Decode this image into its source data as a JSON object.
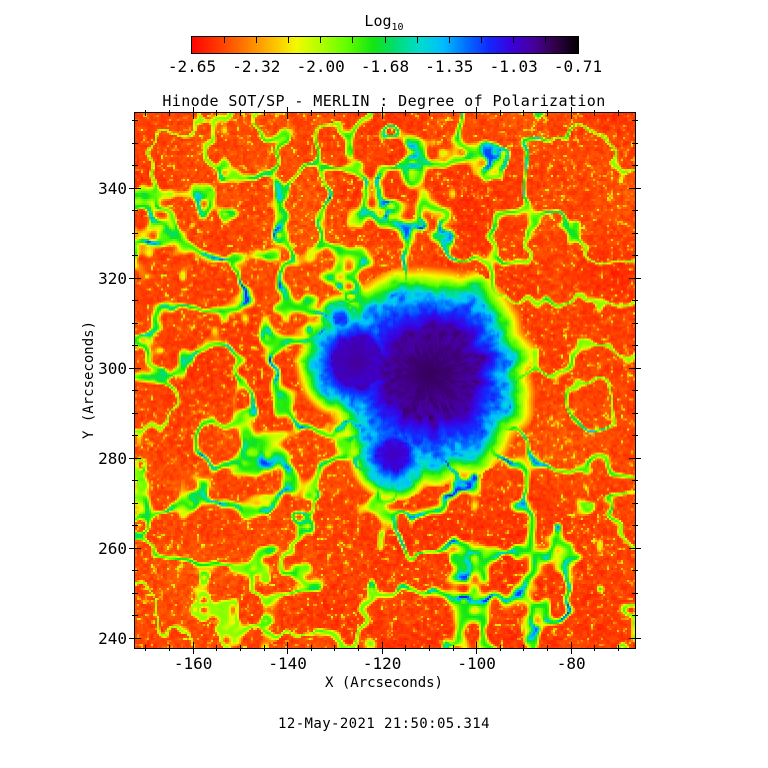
{
  "page": {
    "background": "#ffffff",
    "timestamp": "12-May-2021 21:50:05.314",
    "text_color": "#000000"
  },
  "colorbar": {
    "title": "Log",
    "title_sub": "10",
    "tick_labels": [
      "-2.65",
      "-2.32",
      "-2.00",
      "-1.68",
      "-1.35",
      "-1.03",
      "-0.71"
    ]
  },
  "plot": {
    "title": "Hinode SOT/SP - MERLIN : Degree of Polarization",
    "xlabel": "X (Arcseconds)",
    "ylabel": "Y (Arcseconds)",
    "xtick_labels": [
      "-160",
      "-140",
      "-120",
      "-100",
      "-80"
    ],
    "ytick_labels": [
      "340",
      "320",
      "300",
      "280",
      "260",
      "240"
    ]
  },
  "chart_data": {
    "type": "heatmap",
    "title": "Hinode SOT/SP - MERLIN : Degree of Polarization",
    "xlabel": "X (Arcseconds)",
    "ylabel": "Y (Arcseconds)",
    "xlim": [
      -172.3,
      -66.5
    ],
    "ylim": [
      237.8,
      356.7
    ],
    "xticks": [
      -160,
      -140,
      -120,
      -100,
      -80
    ],
    "yticks": [
      240,
      260,
      280,
      300,
      320,
      340
    ],
    "x_minor_step": 5,
    "y_minor_step": 5,
    "grid": false,
    "colorbar": {
      "label": "Log10",
      "ticks": [
        -2.65,
        -2.32,
        -2.0,
        -1.68,
        -1.35,
        -1.03,
        -0.71
      ],
      "range": [
        -2.65,
        -0.71
      ],
      "orientation": "horizontal",
      "position": "top"
    },
    "colormap_stops": [
      [
        0.0,
        "#ff0800"
      ],
      [
        0.07,
        "#ff3c00"
      ],
      [
        0.14,
        "#ff7d00"
      ],
      [
        0.21,
        "#ffc000"
      ],
      [
        0.27,
        "#f4fa00"
      ],
      [
        0.33,
        "#b4ff00"
      ],
      [
        0.4,
        "#64ff00"
      ],
      [
        0.47,
        "#14e614"
      ],
      [
        0.53,
        "#00dc78"
      ],
      [
        0.59,
        "#00dccd"
      ],
      [
        0.65,
        "#00bfff"
      ],
      [
        0.71,
        "#0071ff"
      ],
      [
        0.77,
        "#1428ff"
      ],
      [
        0.83,
        "#3c00dc"
      ],
      [
        0.89,
        "#460096"
      ],
      [
        0.94,
        "#32004b"
      ],
      [
        1.0,
        "#050005"
      ]
    ],
    "annotations": [
      "12-May-2021 21:50:05.314"
    ],
    "features": [
      {
        "name": "main sunspot umbra",
        "x_arcsec": -110,
        "y_arcsec": 298.5,
        "note": "near-black/dark-purple core, log10 p ~ -0.8, blue penumbral filaments"
      },
      {
        "name": "secondary umbra",
        "x_arcsec": -125.3,
        "y_arcsec": 301,
        "note": "smaller dark-purple core west of main spot"
      },
      {
        "name": "pore",
        "x_arcsec": -117.7,
        "y_arcsec": 280.3,
        "note": "small dark blue/purple knot south of spot complex"
      },
      {
        "name": "green-yellow moat ring",
        "note": "log10 p ~ -1.7 annulus around penumbra"
      },
      {
        "name": "plage network lanes",
        "note": "green/cyan/blue lanes (-2.0 to -1.2), strongest west edge, SE diagonal band, lower-left arc"
      },
      {
        "name": "quiet sun background",
        "note": "red, log10 p ~ -2.6, with yellow-green bright speckles"
      }
    ]
  }
}
